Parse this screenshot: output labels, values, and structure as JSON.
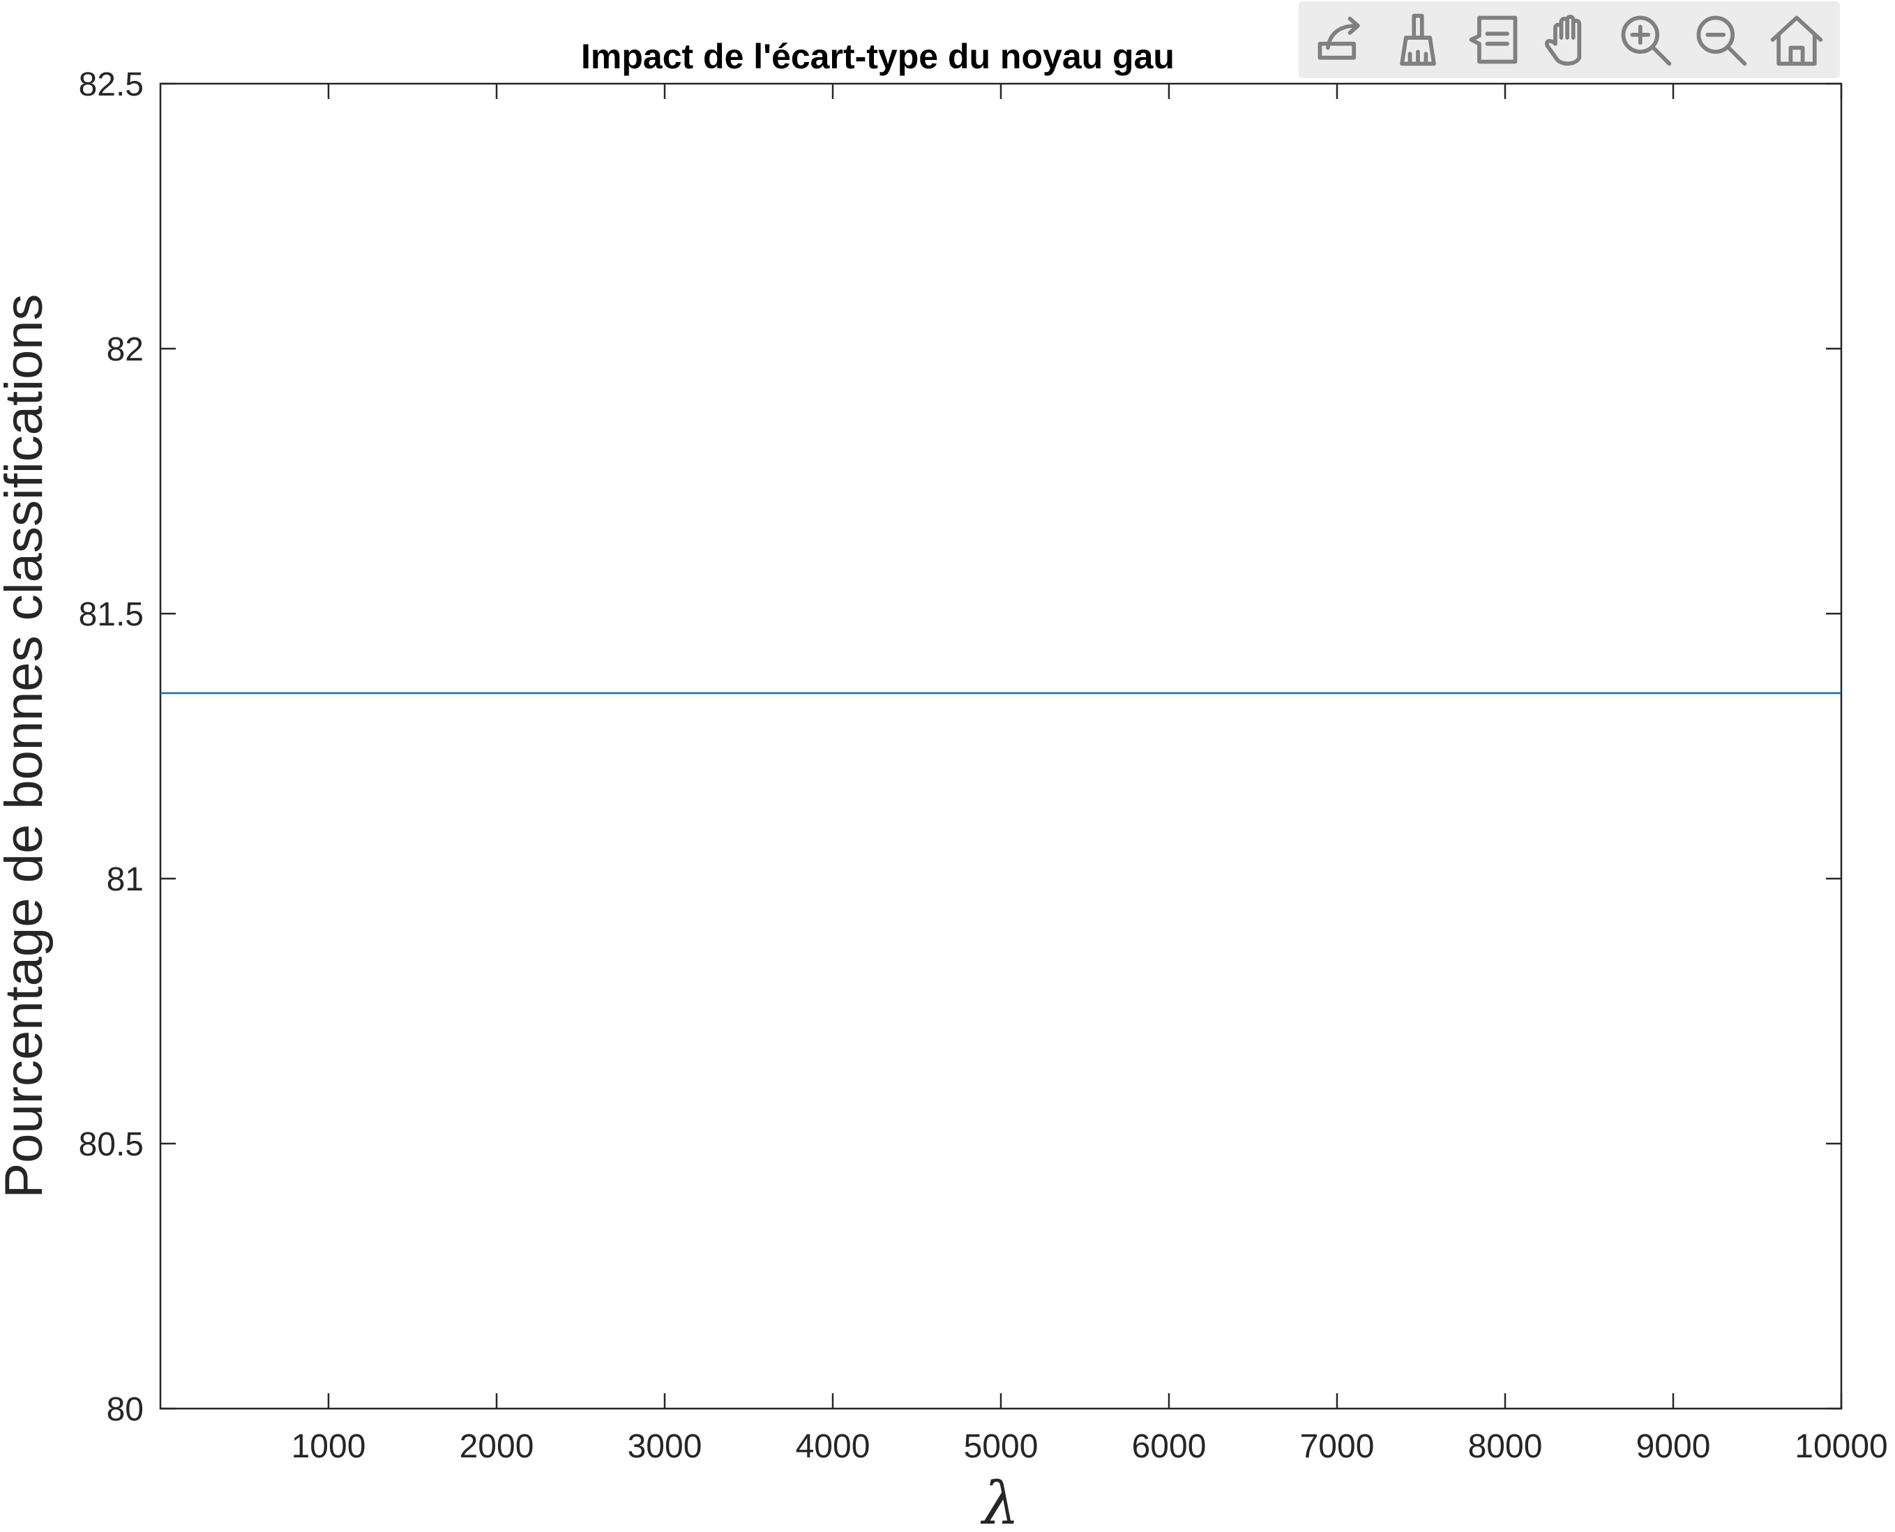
{
  "chart_data": {
    "type": "line",
    "title": "Impact de l'écart-type du noyau gau",
    "xlabel": "λ",
    "ylabel": "Pourcentage de bonnes classifications",
    "xlim": [
      0,
      10000
    ],
    "ylim": [
      80,
      82.5
    ],
    "x_ticks": [
      1000,
      2000,
      3000,
      4000,
      5000,
      6000,
      7000,
      8000,
      9000,
      10000
    ],
    "y_ticks": [
      80,
      80.5,
      81,
      81.5,
      82,
      82.5
    ],
    "x_tick_labels": [
      "1000",
      "2000",
      "3000",
      "4000",
      "5000",
      "6000",
      "7000",
      "8000",
      "9000",
      "10000"
    ],
    "y_tick_labels": [
      "80",
      "80.5",
      "81",
      "81.5",
      "82",
      "82.5"
    ],
    "grid": false,
    "series": [
      {
        "color": "#0072BD",
        "x": [
          0,
          10000
        ],
        "y": [
          81.35,
          81.35
        ]
      }
    ]
  },
  "toolbar": {
    "buttons": [
      "export-icon",
      "brush-icon",
      "data-tips-icon",
      "pan-icon",
      "zoom-in-icon",
      "zoom-out-icon",
      "home-icon"
    ]
  }
}
